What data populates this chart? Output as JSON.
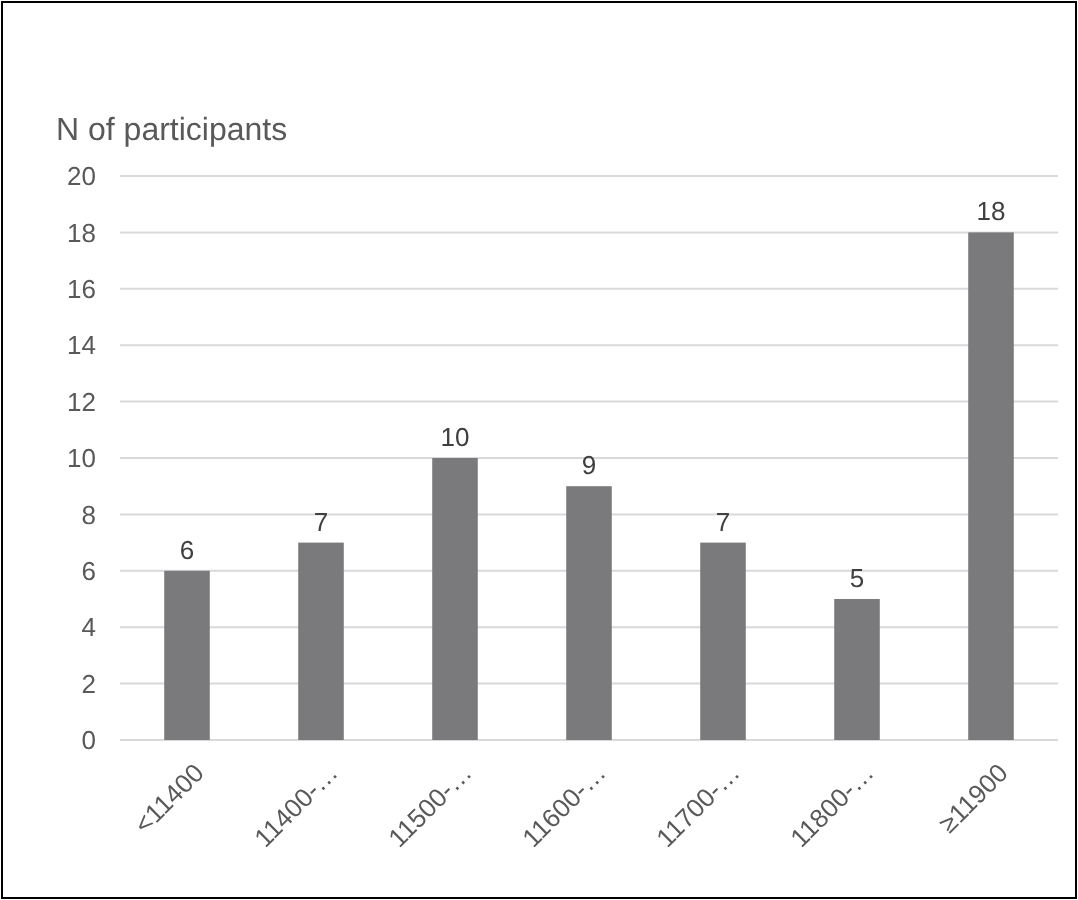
{
  "chart_data": {
    "type": "bar",
    "ylabel": "N of participants",
    "categories": [
      "<11400",
      "11400-…",
      "11500-…",
      "11600-…",
      "11700-…",
      "11800-…",
      "≥11900"
    ],
    "values": [
      6,
      7,
      10,
      9,
      7,
      5,
      18
    ],
    "color": "#7a7a7c",
    "ylim": [
      0,
      20
    ],
    "yticks": [
      0,
      2,
      4,
      6,
      8,
      10,
      12,
      14,
      16,
      18,
      20
    ],
    "grid": "y",
    "data_labels": true
  }
}
